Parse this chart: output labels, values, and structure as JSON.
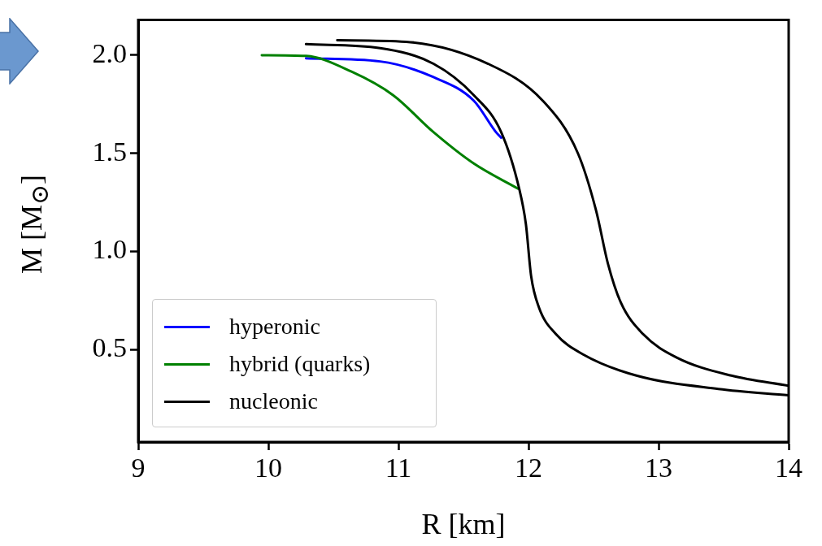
{
  "chart_data": {
    "type": "line",
    "xlabel": "R [km]",
    "ylabel": "M [M$_{⊙}$]",
    "xlim": [
      9,
      14
    ],
    "xticks": [
      9,
      10,
      11,
      12,
      13,
      14
    ],
    "ylim": [
      0.03,
      2.18
    ],
    "yticks": [
      0.5,
      {
        "value": 1,
        "label": "1.0"
      },
      1.5,
      {
        "value": 2,
        "label": "2.0"
      }
    ],
    "legend": "bottom left",
    "marker": "none",
    "line_style": "solid",
    "series": [
      {
        "name": "hyperonic",
        "color": "#0000ff",
        "x": [
          10.29,
          10.86,
          11.27,
          11.58,
          11.75,
          11.79
        ],
        "values": [
          1.984,
          1.968,
          1.888,
          1.768,
          1.608,
          1.58
        ]
      },
      {
        "name": "hybrid (quarks)",
        "color": "#008000",
        "x": [
          9.95,
          10.29,
          10.64,
          10.96,
          11.27,
          11.58,
          11.92
        ],
        "values": [
          2.0,
          1.996,
          1.916,
          1.796,
          1.608,
          1.448,
          1.32
        ]
      },
      {
        "name": "nucleonic",
        "color": "#000000",
        "x": [
          10.29,
          10.86,
          11.27,
          11.58,
          11.79,
          11.93,
          11.98,
          12.02,
          12.08,
          12.21,
          12.42,
          12.83,
          13.46,
          14.0
        ],
        "values": [
          2.056,
          2.036,
          1.956,
          1.796,
          1.608,
          1.316,
          1.14,
          0.876,
          0.716,
          0.58,
          0.476,
          0.368,
          0.3,
          0.268
        ]
      },
      {
        "color": "#000000",
        "x": [
          10.53,
          11.06,
          11.69,
          12.11,
          12.38,
          12.52,
          12.61,
          12.71,
          12.88,
          13.14,
          13.56,
          14.0
        ],
        "values": [
          2.076,
          2.068,
          1.956,
          1.768,
          1.5,
          1.208,
          0.94,
          0.74,
          0.58,
          0.46,
          0.368,
          0.316
        ]
      }
    ]
  }
}
